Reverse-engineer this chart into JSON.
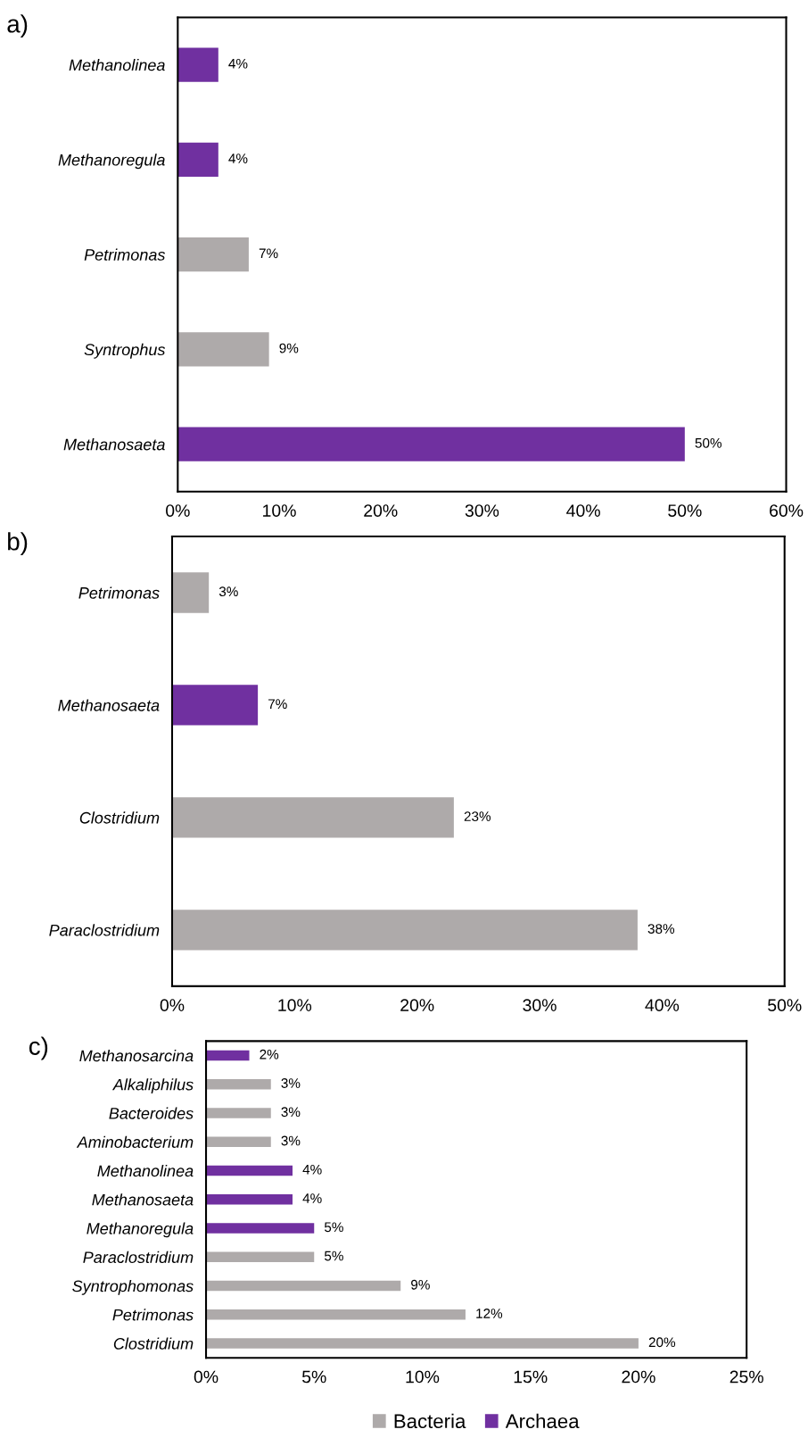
{
  "chart_data": [
    {
      "type": "bar",
      "orientation": "horizontal",
      "title": "a)",
      "categories": [
        "Methanolinea",
        "Methanoregula",
        "Petrimonas",
        "Syntrophus",
        "Methanosaeta"
      ],
      "series": [
        {
          "color": "#aeaaaa",
          "values": [
            null,
            null,
            7,
            9,
            null
          ],
          "value_labels": [
            null,
            null,
            "7%",
            "9%",
            null
          ]
        },
        {
          "color": "#7030a0",
          "values": [
            4,
            4,
            null,
            null,
            50
          ],
          "value_labels": [
            "4%",
            "4%",
            null,
            null,
            "50%"
          ]
        }
      ],
      "xlim": [
        0,
        60
      ],
      "xticks": [
        {
          "value": 0,
          "label": "0%"
        },
        {
          "value": 10,
          "label": "10%"
        },
        {
          "value": 20,
          "label": "20%"
        },
        {
          "value": 30,
          "label": "30%"
        },
        {
          "value": 40,
          "label": "40%"
        },
        {
          "value": 50,
          "label": "50%"
        },
        {
          "value": 60,
          "label": "60%"
        }
      ],
      "grid": false,
      "legend": false
    },
    {
      "type": "bar",
      "orientation": "horizontal",
      "title": "b)",
      "categories": [
        "Petrimonas",
        "Methanosaeta",
        "Clostridium",
        "Paraclostridium"
      ],
      "series": [
        {
          "color": "#aeaaaa",
          "values": [
            3,
            null,
            23,
            38
          ],
          "value_labels": [
            "3%",
            null,
            "23%",
            "38%"
          ]
        },
        {
          "color": "#7030a0",
          "values": [
            null,
            7,
            null,
            null
          ],
          "value_labels": [
            null,
            "7%",
            null,
            null
          ]
        }
      ],
      "xlim": [
        0,
        50
      ],
      "xticks": [
        {
          "value": 0,
          "label": "0%"
        },
        {
          "value": 10,
          "label": "10%"
        },
        {
          "value": 20,
          "label": "20%"
        },
        {
          "value": 30,
          "label": "30%"
        },
        {
          "value": 40,
          "label": "40%"
        },
        {
          "value": 50,
          "label": "50%"
        }
      ],
      "grid": false,
      "legend": false
    },
    {
      "type": "bar",
      "orientation": "horizontal",
      "title": "c)",
      "categories": [
        "Methanosarcina",
        "Alkaliphilus",
        "Bacteroides",
        "Aminobacterium",
        "Methanolinea",
        "Methanosaeta",
        "Methanoregula",
        "Paraclostridium",
        "Syntrophomonas",
        "Petrimonas",
        "Clostridium"
      ],
      "series": [
        {
          "name": "Bacteria",
          "color": "#aeaaaa",
          "values": [
            null,
            3,
            3,
            3,
            null,
            null,
            null,
            5,
            9,
            12,
            20
          ],
          "value_labels": [
            null,
            "3%",
            "3%",
            "3%",
            null,
            null,
            null,
            "5%",
            "9%",
            "12%",
            "20%"
          ]
        },
        {
          "name": "Archaea",
          "color": "#7030a0",
          "values": [
            2,
            null,
            null,
            null,
            4,
            4,
            5,
            null,
            null,
            null,
            null
          ],
          "value_labels": [
            "2%",
            null,
            null,
            null,
            "4%",
            "4%",
            "5%",
            null,
            null,
            null,
            null
          ]
        }
      ],
      "xlim": [
        0,
        25
      ],
      "xticks": [
        {
          "value": 0,
          "label": "0%"
        },
        {
          "value": 5,
          "label": "5%"
        },
        {
          "value": 10,
          "label": "10%"
        },
        {
          "value": 15,
          "label": "15%"
        },
        {
          "value": 20,
          "label": "20%"
        },
        {
          "value": 25,
          "label": "25%"
        }
      ],
      "grid": false,
      "legend": "bottom"
    }
  ]
}
